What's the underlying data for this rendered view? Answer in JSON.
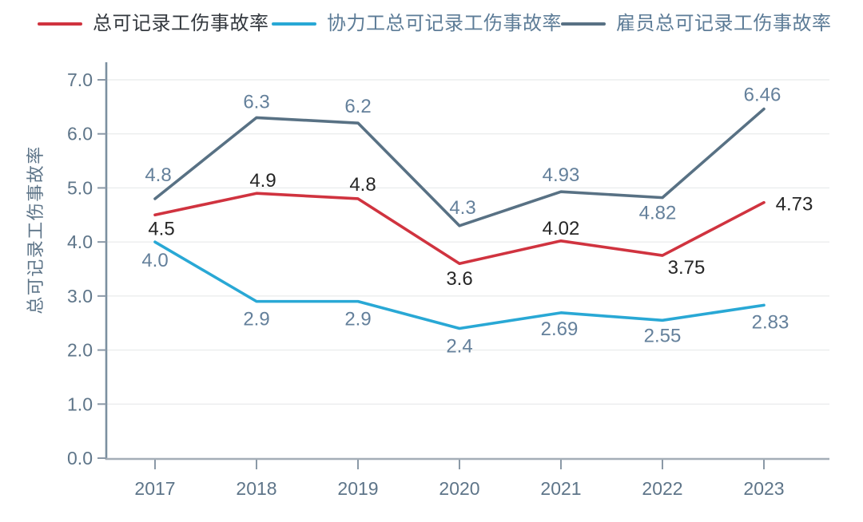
{
  "legend": {
    "items": [
      {
        "label": "总可记录工伤事故率",
        "swatch_color": "#d0333f",
        "label_color": "#33383e"
      },
      {
        "label": "协力工总可记录工伤事故率",
        "swatch_color": "#29a8d5",
        "label_color": "#5d7c97"
      },
      {
        "label": "雇员总可记录工伤事故率",
        "swatch_color": "#587184",
        "label_color": "#5d7c97"
      }
    ]
  },
  "chart_data": {
    "type": "line",
    "title": "",
    "xlabel": "",
    "ylabel": "总可记录工伤事故率",
    "categories": [
      "2017",
      "2018",
      "2019",
      "2020",
      "2021",
      "2022",
      "2023"
    ],
    "ylim": [
      0,
      7
    ],
    "ytick_labels": [
      "0.0",
      "1.0",
      "2.0",
      "3.0",
      "4.0",
      "5.0",
      "6.0",
      "7.0"
    ],
    "grid": true,
    "legend_position": "top",
    "series": [
      {
        "name": "总可记录工伤事故率",
        "color": "#d0333f",
        "label_color": "#262626",
        "values": [
          4.5,
          4.9,
          4.8,
          3.6,
          4.02,
          3.75,
          4.73
        ],
        "labels": [
          "4.5",
          "4.9",
          "4.8",
          "3.6",
          "4.02",
          "3.75",
          "4.73"
        ],
        "label_offsets": [
          [
            8,
            25
          ],
          [
            8,
            -8
          ],
          [
            6,
            -10
          ],
          [
            0,
            27
          ],
          [
            0,
            -8
          ],
          [
            30,
            23
          ],
          [
            38,
            10
          ]
        ]
      },
      {
        "name": "协力工总可记录工伤事故率",
        "color": "#29a8d5",
        "label_color": "#64809b",
        "values": [
          4.0,
          2.9,
          2.9,
          2.4,
          2.69,
          2.55,
          2.83
        ],
        "labels": [
          "4.0",
          "2.9",
          "2.9",
          "2.4",
          "2.69",
          "2.55",
          "2.83"
        ],
        "label_offsets": [
          [
            0,
            31
          ],
          [
            0,
            30
          ],
          [
            0,
            30
          ],
          [
            0,
            30
          ],
          [
            -2,
            28
          ],
          [
            0,
            27
          ],
          [
            8,
            29
          ]
        ]
      },
      {
        "name": "雇员总可记录工伤事故率",
        "color": "#587184",
        "label_color": "#64809b",
        "values": [
          4.8,
          6.3,
          6.2,
          4.3,
          4.93,
          4.82,
          6.46
        ],
        "labels": [
          "4.8",
          "6.3",
          "6.2",
          "4.3",
          "4.93",
          "4.82",
          "6.46"
        ],
        "label_offsets": [
          [
            4,
            -22
          ],
          [
            0,
            -12
          ],
          [
            0,
            -13
          ],
          [
            4,
            -15
          ],
          [
            0,
            -13
          ],
          [
            -6,
            27
          ],
          [
            -2,
            -10
          ]
        ]
      }
    ]
  }
}
